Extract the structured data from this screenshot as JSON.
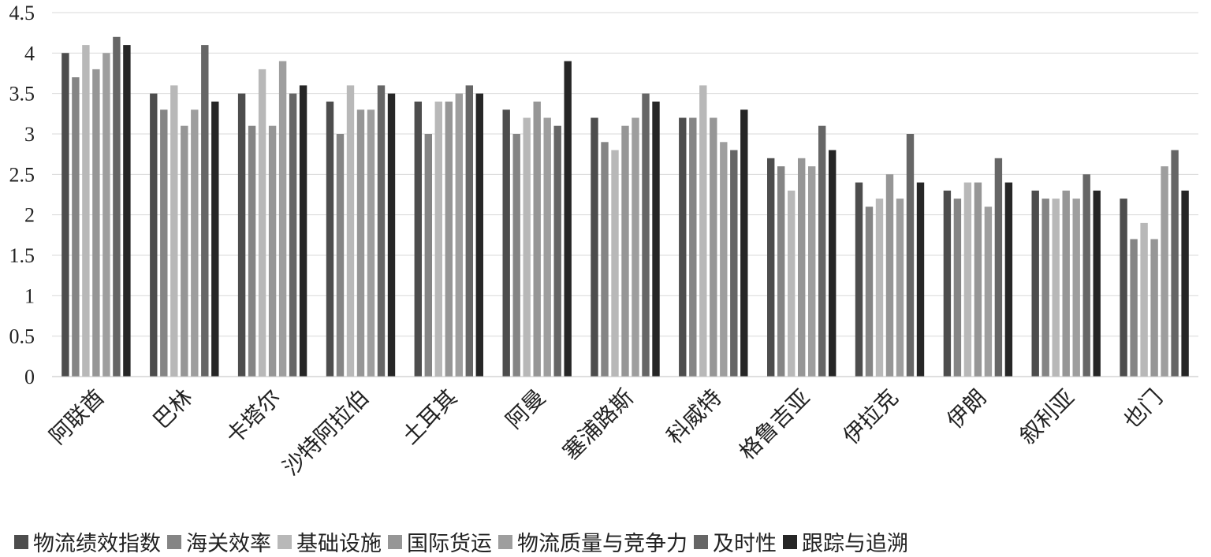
{
  "chart_data": {
    "type": "bar",
    "title": "",
    "xlabel": "",
    "ylabel": "",
    "ylim": [
      0,
      4.5
    ],
    "yticks": [
      "0",
      "0.5",
      "1",
      "1.5",
      "2",
      "2.5",
      "3",
      "3.5",
      "4",
      "4.5"
    ],
    "grid": true,
    "legend_position": "bottom",
    "categories": [
      "阿联酋",
      "巴林",
      "卡塔尔",
      "沙特阿拉伯",
      "土耳其",
      "阿曼",
      "塞浦路斯",
      "科威特",
      "格鲁吉亚",
      "伊拉克",
      "伊朗",
      "叙利亚",
      "也门"
    ],
    "series": [
      {
        "name": "物流绩效指数",
        "color": "#4d4d4d",
        "values": [
          4.0,
          3.5,
          3.5,
          3.4,
          3.4,
          3.3,
          3.2,
          3.2,
          2.7,
          2.4,
          2.3,
          2.3,
          2.2
        ]
      },
      {
        "name": "海关效率",
        "color": "#858585",
        "values": [
          3.7,
          3.3,
          3.1,
          3.0,
          3.0,
          3.0,
          2.9,
          3.2,
          2.6,
          2.1,
          2.2,
          2.2,
          1.7
        ]
      },
      {
        "name": "基础设施",
        "color": "#b8b8b8",
        "values": [
          4.1,
          3.6,
          3.8,
          3.6,
          3.4,
          3.2,
          2.8,
          3.6,
          2.3,
          2.2,
          2.4,
          2.2,
          1.9
        ]
      },
      {
        "name": "国际货运",
        "color": "#969696",
        "values": [
          3.8,
          3.1,
          3.1,
          3.3,
          3.4,
          3.4,
          3.1,
          3.2,
          2.7,
          2.5,
          2.4,
          2.3,
          1.7
        ]
      },
      {
        "name": "物流质量与竞争力",
        "color": "#9e9e9e",
        "values": [
          4.0,
          3.3,
          3.9,
          3.3,
          3.5,
          3.2,
          3.2,
          2.9,
          2.6,
          2.2,
          2.1,
          2.2,
          2.6
        ]
      },
      {
        "name": "及时性",
        "color": "#666666",
        "values": [
          4.2,
          4.1,
          3.5,
          3.6,
          3.6,
          3.1,
          3.5,
          2.8,
          3.1,
          3.0,
          2.7,
          2.5,
          2.8
        ]
      },
      {
        "name": "跟踪与追溯",
        "color": "#262626",
        "values": [
          4.1,
          3.4,
          3.6,
          3.5,
          3.5,
          3.9,
          3.4,
          3.3,
          2.8,
          2.4,
          2.4,
          2.3,
          2.3
        ]
      }
    ]
  }
}
